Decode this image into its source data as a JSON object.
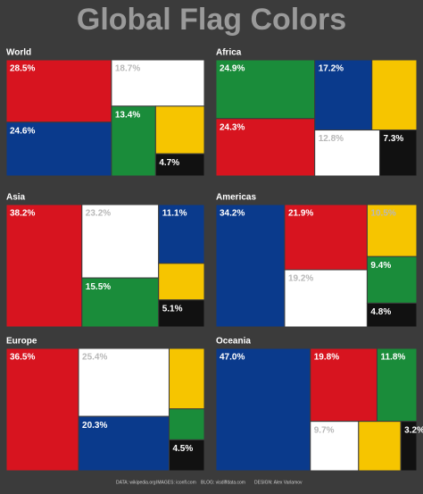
{
  "title": "Global Flag Colors",
  "chart_data": [
    {
      "type": "treemap",
      "title": "World",
      "values": [
        28.5,
        24.6,
        18.7,
        13.4,
        10.1,
        4.7
      ],
      "value_labels": [
        "28.5%",
        "24.6%",
        "18.7%",
        "13.4%",
        null,
        "4.7%"
      ],
      "colors": [
        "#d7141f",
        "#0a3a8c",
        "#ffffff",
        "#1a8c3a",
        "#f6c500",
        "#111111"
      ]
    },
    {
      "type": "treemap",
      "title": "Africa",
      "values": [
        24.9,
        24.3,
        17.2,
        13.5,
        12.8,
        7.3
      ],
      "value_labels": [
        "24.9%",
        "24.3%",
        "17.2%",
        null,
        "12.8%",
        "7.3%"
      ],
      "colors": [
        "#1a8c3a",
        "#d7141f",
        "#0a3a8c",
        "#f6c500",
        "#ffffff",
        "#111111"
      ]
    },
    {
      "type": "treemap",
      "title": "Asia",
      "values": [
        38.2,
        23.2,
        15.5,
        11.1,
        6.9,
        5.1
      ],
      "value_labels": [
        "38.2%",
        "23.2%",
        "15.5%",
        "11.1%",
        null,
        "5.1%"
      ],
      "colors": [
        "#d7141f",
        "#ffffff",
        "#1a8c3a",
        "#0a3a8c",
        "#f6c500",
        "#111111"
      ]
    },
    {
      "type": "treemap",
      "title": "Americas",
      "values": [
        34.2,
        21.9,
        19.2,
        10.5,
        9.4,
        4.8
      ],
      "value_labels": [
        "34.2%",
        "21.9%",
        "19.2%",
        "10.5%",
        "9.4%",
        "4.8%"
      ],
      "colors": [
        "#0a3a8c",
        "#d7141f",
        "#ffffff",
        "#f6c500",
        "#1a8c3a",
        "#111111"
      ]
    },
    {
      "type": "treemap",
      "title": "Europe",
      "values": [
        36.5,
        25.4,
        20.3,
        8.8,
        4.5,
        4.5
      ],
      "value_labels": [
        "36.5%",
        "25.4%",
        "20.3%",
        null,
        null,
        "4.5%"
      ],
      "colors": [
        "#d7141f",
        "#ffffff",
        "#0a3a8c",
        "#f6c500",
        "#1a8c3a",
        "#111111"
      ]
    },
    {
      "type": "treemap",
      "title": "Oceania",
      "values": [
        47.0,
        19.8,
        11.8,
        9.7,
        8.5,
        3.2
      ],
      "value_labels": [
        "47.0%",
        "19.8%",
        "11.8%",
        "9.7%",
        null,
        "3.2%"
      ],
      "colors": [
        "#0a3a8c",
        "#d7141f",
        "#1a8c3a",
        "#ffffff",
        "#f6c500",
        "#111111"
      ]
    }
  ],
  "footer": [
    "DATA: wikipedia.org",
    "IMAGES: iconfl.com",
    "BLOG: visdiffdata.com",
    "DESIGN: Alex Varlamov"
  ]
}
